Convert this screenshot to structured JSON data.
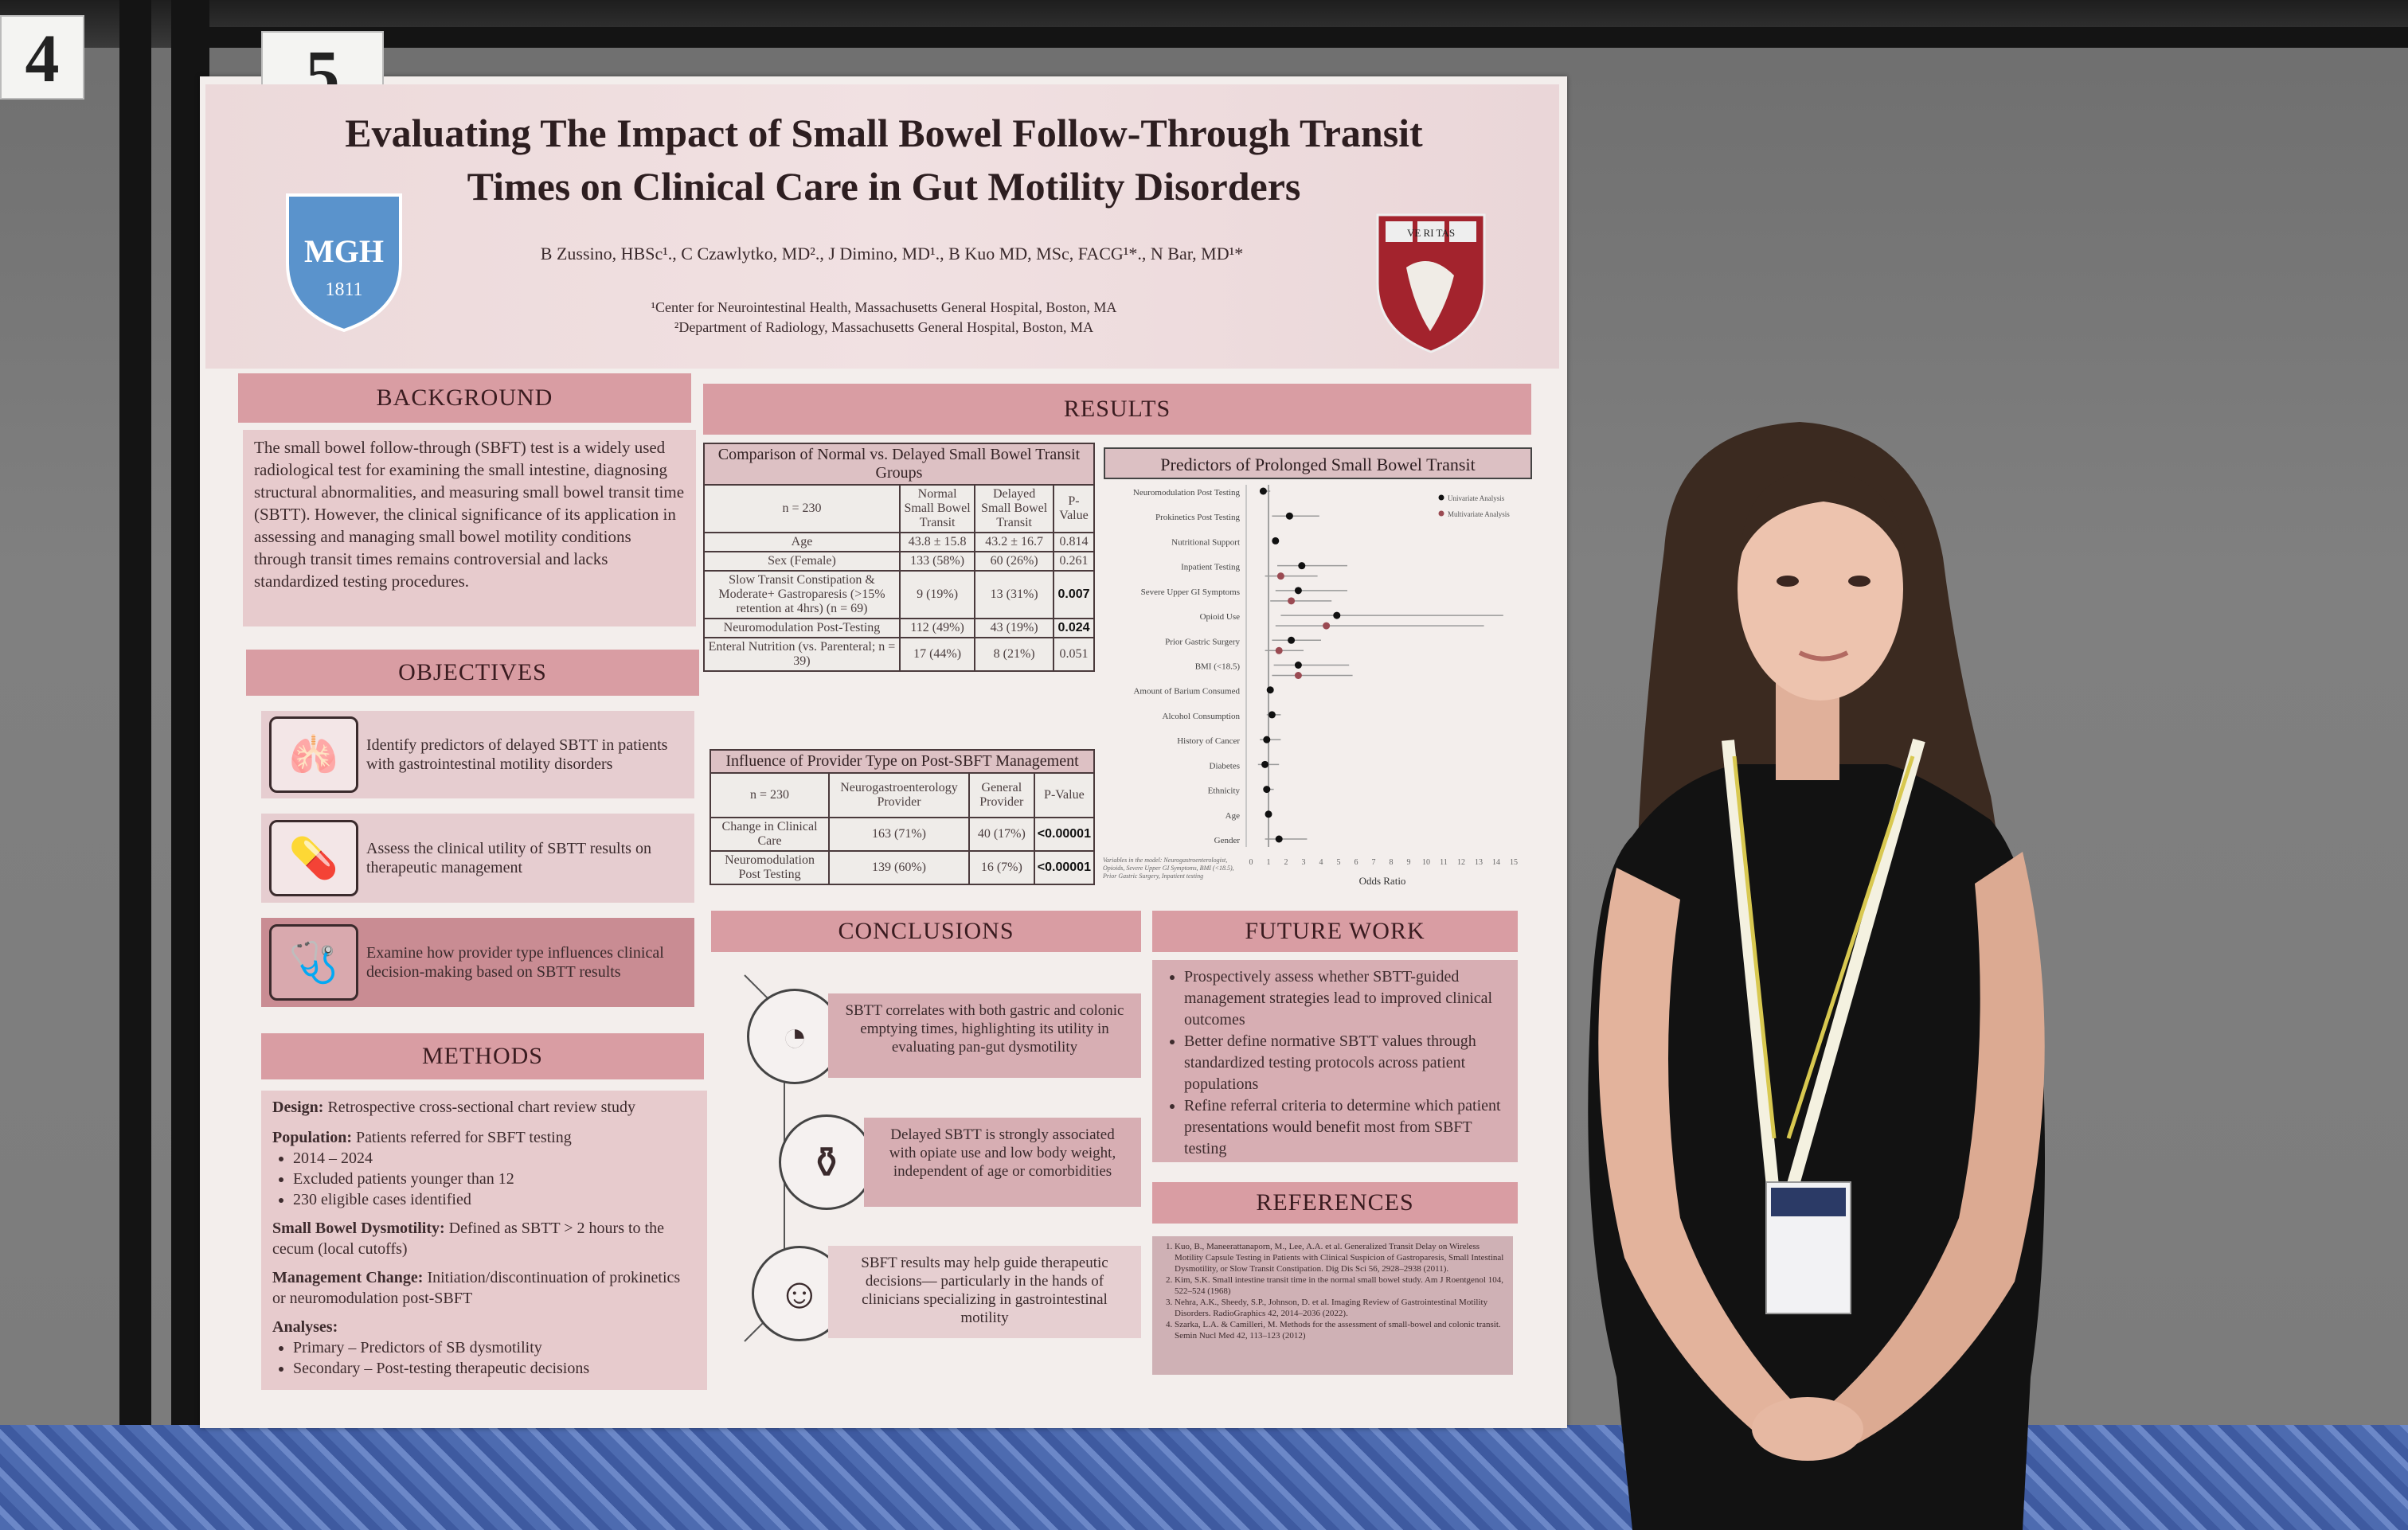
{
  "scene": {
    "board_numbers": [
      "4",
      "5"
    ],
    "colors": {
      "poster_pink": "#d99da3",
      "poster_bg": "#f3eeec",
      "wall": "#7a7a7a",
      "carpet": "#4d6bb0",
      "dress": "#121212"
    }
  },
  "poster": {
    "title_lines": [
      "Evaluating The Impact of Small Bowel Follow-Through Transit",
      "Times on Clinical Care in Gut Motility Disorders"
    ],
    "authors": "B Zussino, HBSc¹., C Czawlytko, MD²., J Dimino, MD¹., B Kuo MD, MSc, FACG¹*., N Bar, MD¹*",
    "affiliations": [
      "¹Center for Neurointestinal Health, Massachusetts General Hospital, Boston, MA",
      "²Department of Radiology, Massachusetts General Hospital, Boston, MA"
    ],
    "logos": {
      "left": {
        "line1": "MGH",
        "line2": "1811"
      },
      "right": {
        "text": "VE RI TAS"
      }
    },
    "background": {
      "heading": "BACKGROUND",
      "text": "The small bowel follow-through (SBFT) test is a widely used radiological test for examining the small intestine, diagnosing structural abnormalities, and measuring small bowel transit time (SBTT). However, the clinical significance of its application in assessing and managing small bowel motility conditions through transit times remains controversial and lacks standardized testing procedures."
    },
    "objectives": {
      "heading": "OBJECTIVES",
      "items": [
        {
          "icon": "intestine-icon",
          "text": "Identify predictors of delayed SBTT in patients with gastrointestinal motility disorders"
        },
        {
          "icon": "pills-icon",
          "text": "Assess the clinical utility of SBTT results on therapeutic management"
        },
        {
          "icon": "stethoscope-icon",
          "text": "Examine how provider type influences clinical decision-making based on SBTT results"
        }
      ]
    },
    "methods": {
      "heading": "METHODS",
      "design_label": "Design:",
      "design": "Retrospective cross-sectional chart review study",
      "population_label": "Population:",
      "population": "Patients referred for SBFT testing",
      "population_bullets": [
        "2014 – 2024",
        "Excluded patients younger than 12",
        "230 eligible cases identified"
      ],
      "dysmotility_label": "Small Bowel Dysmotility:",
      "dysmotility": "Defined as SBTT > 2 hours to the cecum (local cutoffs)",
      "management_label": "Management Change:",
      "management": "Initiation/discontinuation of prokinetics or neuromodulation post-SBFT",
      "analyses_label": "Analyses:",
      "analyses_bullets": [
        "Primary – Predictors of SB dysmotility",
        "Secondary – Post-testing therapeutic decisions"
      ]
    },
    "results": {
      "heading": "RESULTS",
      "table1": {
        "caption": "Comparison of Normal vs. Delayed Small Bowel Transit Groups",
        "headers": [
          "n = 230",
          "Normal Small Bowel Transit",
          "Delayed Small Bowel Transit",
          "P-Value"
        ],
        "rows": [
          [
            "Age",
            "43.8 ± 15.8",
            "43.2 ± 16.7",
            "0.814"
          ],
          [
            "Sex (Female)",
            "133 (58%)",
            "60 (26%)",
            "0.261"
          ],
          [
            "Slow Transit Constipation & Moderate+ Gastroparesis (>15% retention at 4hrs) (n = 69)",
            "9 (19%)",
            "13 (31%)",
            "0.007"
          ],
          [
            "Neuromodulation Post-Testing",
            "112 (49%)",
            "43 (19%)",
            "0.024"
          ],
          [
            "Enteral Nutrition (vs. Parenteral; n = 39)",
            "17 (44%)",
            "8 (21%)",
            "0.051"
          ]
        ],
        "bold_p": [
          false,
          false,
          true,
          true,
          false
        ]
      },
      "table2": {
        "caption": "Influence of Provider Type on Post-SBFT Management",
        "headers": [
          "n = 230",
          "Neurogastroenterology Provider",
          "General Provider",
          "P-Value"
        ],
        "rows": [
          [
            "Change in Clinical Care",
            "163 (71%)",
            "40 (17%)",
            "<0.00001"
          ],
          [
            "Neuromodulation Post Testing",
            "139 (60%)",
            "16 (7%)",
            "<0.00001"
          ]
        ],
        "bold_p": [
          true,
          true
        ]
      },
      "forest_plot": {
        "type": "forest",
        "title": "Predictors of Prolonged Small Bowel Transit",
        "xlabel": "Odds Ratio",
        "xlim": [
          0,
          15
        ],
        "xticks": [
          0,
          1,
          2,
          3,
          4,
          5,
          6,
          7,
          8,
          9,
          10,
          11,
          12,
          13,
          14,
          15
        ],
        "reference_line": 1,
        "legend_placement": "top-right",
        "series": [
          {
            "name": "Univariate Analysis",
            "color": "#111111"
          },
          {
            "name": "Multivariate Analysis",
            "color": "#9a4a52"
          }
        ],
        "rows": [
          {
            "label": "Neuromodulation Post Testing",
            "uni": [
              0.7,
              0.5,
              1.1
            ]
          },
          {
            "label": "Prokinetics Post Testing",
            "uni": [
              2.2,
              1.2,
              3.9
            ]
          },
          {
            "label": "Nutritional Support",
            "uni": [
              1.4,
              1.3,
              1.5
            ]
          },
          {
            "label": "Inpatient Testing",
            "uni": [
              2.9,
              1.5,
              5.5
            ],
            "multi": [
              1.7,
              0.8,
              3.8
            ]
          },
          {
            "label": "Severe Upper GI Symptoms",
            "uni": [
              2.7,
              1.4,
              5.5
            ],
            "multi": [
              2.3,
              1.1,
              4.6
            ]
          },
          {
            "label": "Opioid Use",
            "uni": [
              4.9,
              1.7,
              14.4
            ],
            "multi": [
              4.3,
              1.4,
              13.3
            ]
          },
          {
            "label": "Prior Gastric Surgery",
            "uni": [
              2.3,
              1.2,
              4.0
            ],
            "multi": [
              1.6,
              0.8,
              3.0
            ]
          },
          {
            "label": "BMI (<18.5)",
            "uni": [
              2.7,
              1.3,
              5.6
            ],
            "multi": [
              2.7,
              1.2,
              5.8
            ]
          },
          {
            "label": "Amount of Barium Consumed",
            "uni": [
              1.1,
              1.05,
              1.15
            ]
          },
          {
            "label": "Alcohol Consumption",
            "uni": [
              1.2,
              0.9,
              1.7
            ]
          },
          {
            "label": "History of Cancer",
            "uni": [
              0.9,
              0.5,
              1.7
            ]
          },
          {
            "label": "Diabetes",
            "uni": [
              0.8,
              0.4,
              1.6
            ]
          },
          {
            "label": "Ethnicity",
            "uni": [
              0.9,
              0.7,
              1.3
            ]
          },
          {
            "label": "Age",
            "uni": [
              1.0,
              0.98,
              1.02
            ]
          },
          {
            "label": "Gender",
            "uni": [
              1.6,
              0.8,
              3.2
            ]
          }
        ],
        "footnote": "Variables in the model: Neurogastroenterologist, Opioids, Severe Upper GI Symptoms, BMI (<18.5), Prior Gastric Surgery, Inpatient testing"
      }
    },
    "conclusions": {
      "heading": "CONCLUSIONS",
      "items": [
        {
          "icon": "stomach-icon",
          "text": "SBTT correlates with both gastric and colonic emptying times, highlighting its utility in evaluating pan-gut dysmotility"
        },
        {
          "icon": "medicine-bottle-icon",
          "text": "Delayed SBTT is strongly associated with opiate use and low body weight, independent of age or comorbidities"
        },
        {
          "icon": "brain-head-icon",
          "text": "SBFT results may help guide therapeutic decisions— particularly in the hands of clinicians specializing in gastrointestinal motility"
        }
      ]
    },
    "future_work": {
      "heading": "FUTURE WORK",
      "items": [
        "Prospectively assess whether SBTT-guided management strategies lead to improved clinical outcomes",
        "Better define normative SBTT values through standardized testing protocols across patient populations",
        "Refine referral criteria to determine which patient presentations would benefit most from SBFT testing"
      ]
    },
    "references": {
      "heading": "REFERENCES",
      "items": [
        "Kuo, B., Maneerattanaporn, M., Lee, A.A. et al. Generalized Transit Delay on Wireless Motility Capsule Testing in Patients with Clinical Suspicion of Gastroparesis, Small Intestinal Dysmotility, or Slow Transit Constipation. Dig Dis Sci 56, 2928–2938 (2011).",
        "Kim, S.K. Small intestine transit time in the normal small bowel study. Am J Roentgenol 104, 522–524 (1968)",
        "Nehra, A.K., Sheedy, S.P., Johnson, D. et al. Imaging Review of Gastrointestinal Motility Disorders. RadioGraphics 42, 2014–2036 (2022).",
        "Szarka, L.A. & Camilleri, M. Methods for the assessment of small-bowel and colonic transit. Semin Nucl Med 42, 113–123 (2012)"
      ]
    }
  }
}
